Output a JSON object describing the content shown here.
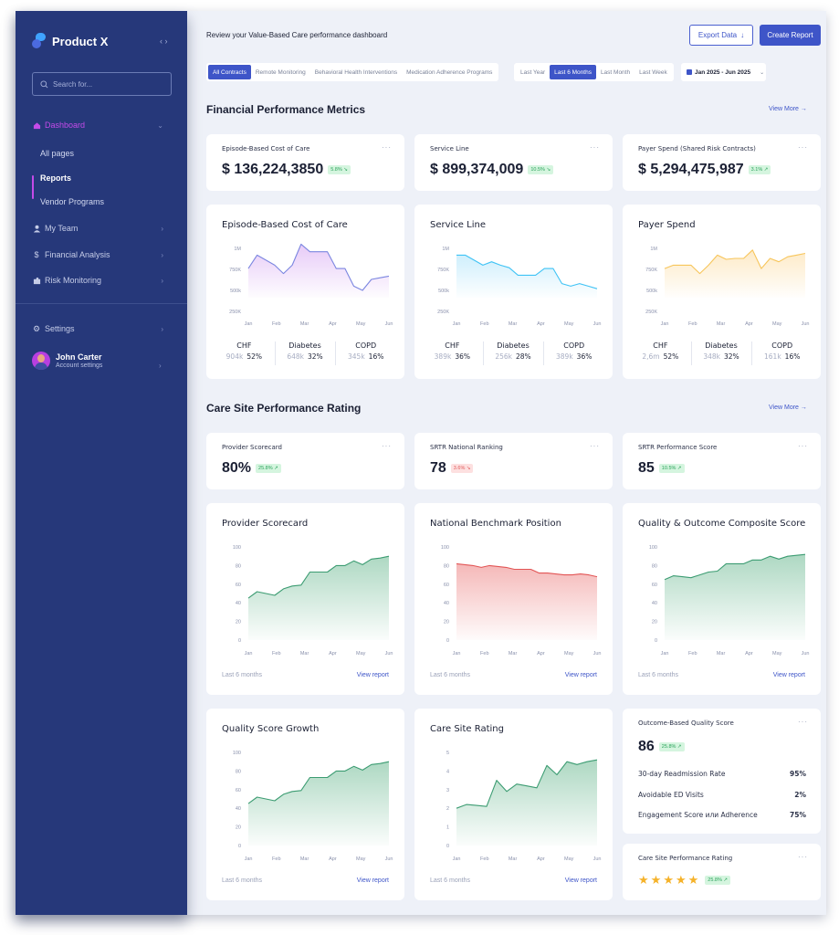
{
  "sidebar": {
    "brand": "Product X",
    "collapse_icon": "‹ ›",
    "search_placeholder": "Search for...",
    "items": [
      {
        "label": "Dashboard",
        "icon": "home-icon"
      },
      {
        "label": "My Team",
        "icon": "user-icon"
      },
      {
        "label": "Financial Analysis",
        "icon": "dollar-icon"
      },
      {
        "label": "Risk Monitoring",
        "icon": "puzzle-icon"
      },
      {
        "label": "Settings",
        "icon": "gear-icon"
      }
    ],
    "sub_items": [
      "All pages",
      "Reports",
      "Vendor Programs"
    ],
    "user": {
      "name": "John Carter",
      "subtitle": "Account settings"
    }
  },
  "header": {
    "subtitle": "Review your Value-Based Care performance dashboard",
    "export_label": "Export Data",
    "create_label": "Create Report"
  },
  "filters": {
    "contracts": [
      "All Contracts",
      "Remote Monitoring",
      "Behavioral Health Interventions",
      "Medication Adherence Programs"
    ],
    "contracts_selected": 0,
    "periods": [
      "Last Year",
      "Last 6 Months",
      "Last Month",
      "Last Week"
    ],
    "periods_selected": 1,
    "date_range": "Jan 2025 - Jun 2025"
  },
  "financial": {
    "title": "Financial Performance Metrics",
    "view_more": "View More",
    "kpis": [
      {
        "label": "Episode-Based Cost of Care",
        "value": "$ 136,224,3850",
        "badge": "5.8% ↘",
        "trend": "down"
      },
      {
        "label": "Service Line",
        "value": "$ 899,374,009",
        "badge": "10.5% ↘",
        "trend": "down"
      },
      {
        "label": "Payer Spend (Shared Risk Contracts)",
        "value": "$ 5,294,475,987",
        "badge": "3.1% ↗",
        "trend": "up"
      }
    ],
    "charts": [
      {
        "title": "Episode-Based Cost of Care",
        "color": "#7b86e0",
        "fill": "#e6c8f7",
        "breakdown": [
          {
            "name": "CHF",
            "amount": "904k",
            "pct": "52%"
          },
          {
            "name": "Diabetes",
            "amount": "648k",
            "pct": "32%"
          },
          {
            "name": "COPD",
            "amount": "345k",
            "pct": "16%"
          }
        ]
      },
      {
        "title": "Service Line",
        "color": "#3fc3f5",
        "fill": "#cdeefc",
        "breakdown": [
          {
            "name": "CHF",
            "amount": "389k",
            "pct": "36%"
          },
          {
            "name": "Diabetes",
            "amount": "256k",
            "pct": "28%"
          },
          {
            "name": "COPD",
            "amount": "389k",
            "pct": "36%"
          }
        ]
      },
      {
        "title": "Payer Spend",
        "color": "#f7c55a",
        "fill": "#fde9c4",
        "breakdown": [
          {
            "name": "CHF",
            "amount": "2,6m",
            "pct": "52%"
          },
          {
            "name": "Diabetes",
            "amount": "348k",
            "pct": "32%"
          },
          {
            "name": "COPD",
            "amount": "161k",
            "pct": "16%"
          }
        ]
      }
    ]
  },
  "care": {
    "title": "Care Site Performance Rating",
    "view_more": "View More",
    "kpis": [
      {
        "label": "Provider Scorecard",
        "value": "80%",
        "badge": "25.8% ↗",
        "trend": "up"
      },
      {
        "label": "SRTR National Ranking",
        "value": "78",
        "badge": "3.6% ↘",
        "trend": "down"
      },
      {
        "label": "SRTR Performance Score",
        "value": "85",
        "badge": "10.5% ↗",
        "trend": "up"
      }
    ],
    "charts": [
      {
        "title": "Provider Scorecard",
        "footer": "Last 6 months",
        "link": "View report"
      },
      {
        "title": "National Benchmark Position",
        "footer": "Last 6 months",
        "link": "View report"
      },
      {
        "title": "Quality & Outcome Composite Score",
        "footer": "Last 6 months",
        "link": "View report"
      },
      {
        "title": "Quality Score Growth",
        "footer": "Last 6 months",
        "link": "View report"
      },
      {
        "title": "Care Site Rating",
        "footer": "Last 6 months",
        "link": "View report"
      }
    ],
    "outcome": {
      "label": "Outcome-Based Quality Score",
      "value": "86",
      "badge": "25.8% ↗",
      "rows": [
        {
          "label": "30-day Readmission Rate",
          "value": "95%"
        },
        {
          "label": "Avoidable ED Visits",
          "value": "2%"
        },
        {
          "label": "Engagement Score или Adherence",
          "value": "75%"
        }
      ]
    },
    "rating": {
      "label": "Care Site Performance Rating",
      "stars": 5,
      "badge": "25.8% ↗"
    }
  },
  "chart_data": [
    {
      "type": "area",
      "title": "Episode-Based Cost of Care",
      "categories": [
        "Jan",
        "Feb",
        "Mar",
        "Apr",
        "May",
        "Jun"
      ],
      "yticks": [
        "1M",
        "750K",
        "500k",
        "250K"
      ],
      "ylim": [
        250000,
        1000000
      ],
      "values": [
        760000,
        920000,
        860000,
        800000,
        700000,
        800000,
        1050000,
        960000,
        960000,
        960000,
        760000,
        760000,
        550000,
        500000,
        630000,
        650000,
        670000
      ]
    },
    {
      "type": "area",
      "title": "Service Line",
      "categories": [
        "Jan",
        "Feb",
        "Mar",
        "Apr",
        "May",
        "Jun"
      ],
      "yticks": [
        "1M",
        "750K",
        "500k",
        "250K"
      ],
      "ylim": [
        250000,
        1000000
      ],
      "values": [
        920000,
        920000,
        860000,
        800000,
        840000,
        800000,
        770000,
        680000,
        680000,
        680000,
        760000,
        760000,
        580000,
        550000,
        580000,
        550000,
        520000
      ]
    },
    {
      "type": "area",
      "title": "Payer Spend",
      "categories": [
        "Jan",
        "Feb",
        "Mar",
        "Apr",
        "May",
        "Jun"
      ],
      "yticks": [
        "1M",
        "750K",
        "500k",
        "250K"
      ],
      "ylim": [
        250000,
        1000000
      ],
      "values": [
        760000,
        800000,
        800000,
        800000,
        700000,
        800000,
        920000,
        870000,
        880000,
        880000,
        980000,
        760000,
        880000,
        840000,
        900000,
        920000,
        940000
      ]
    },
    {
      "type": "area",
      "title": "Provider Scorecard",
      "categories": [
        "Jan",
        "Feb",
        "Mar",
        "Apr",
        "May",
        "Jun"
      ],
      "yticks": [
        100,
        80,
        60,
        40,
        20,
        0
      ],
      "ylim": [
        0,
        100
      ],
      "values": [
        45,
        52,
        50,
        48,
        55,
        58,
        59,
        73,
        73,
        73,
        80,
        80,
        85,
        81,
        87,
        88,
        90
      ]
    },
    {
      "type": "area",
      "title": "National Benchmark Position",
      "categories": [
        "Jan",
        "Feb",
        "Mar",
        "Apr",
        "May",
        "Jun"
      ],
      "yticks": [
        100,
        80,
        60,
        40,
        20,
        0
      ],
      "ylim": [
        0,
        100
      ],
      "values": [
        82,
        81,
        80,
        78,
        80,
        79,
        78,
        76,
        76,
        76,
        72,
        72,
        71,
        70,
        70,
        71,
        70,
        68
      ]
    },
    {
      "type": "area",
      "title": "Quality & Outcome Composite Score",
      "categories": [
        "Jan",
        "Feb",
        "Mar",
        "Apr",
        "May",
        "Jun"
      ],
      "yticks": [
        100,
        80,
        60,
        40,
        20,
        0
      ],
      "ylim": [
        0,
        100
      ],
      "values": [
        65,
        69,
        68,
        67,
        70,
        73,
        74,
        82,
        82,
        82,
        86,
        86,
        90,
        87,
        90,
        91,
        92
      ]
    },
    {
      "type": "area",
      "title": "Quality Score Growth",
      "categories": [
        "Jan",
        "Feb",
        "Mar",
        "Apr",
        "May",
        "Jun"
      ],
      "yticks": [
        100,
        80,
        60,
        40,
        20,
        0
      ],
      "ylim": [
        0,
        100
      ],
      "values": [
        45,
        52,
        50,
        48,
        55,
        58,
        59,
        73,
        73,
        73,
        80,
        80,
        85,
        81,
        87,
        88,
        90
      ]
    },
    {
      "type": "area",
      "title": "Care Site Rating",
      "categories": [
        "Jan",
        "Feb",
        "Mar",
        "Apr",
        "May",
        "Jun"
      ],
      "yticks": [
        5,
        4,
        3,
        2,
        1,
        0
      ],
      "ylim": [
        0,
        5
      ],
      "values": [
        2.0,
        2.2,
        2.15,
        2.1,
        3.5,
        2.9,
        3.3,
        3.2,
        3.1,
        4.3,
        3.8,
        4.5,
        4.35,
        4.5,
        4.6
      ]
    }
  ]
}
